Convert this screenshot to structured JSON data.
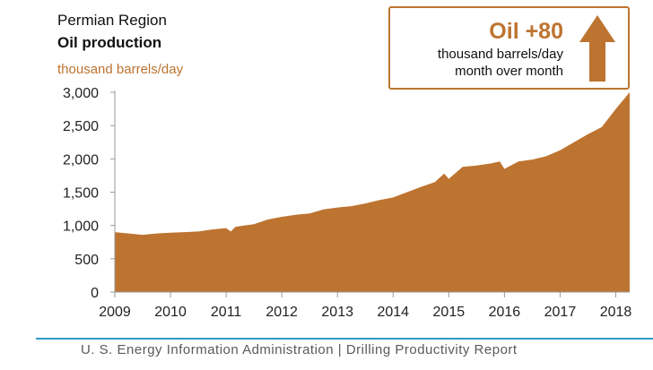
{
  "header": {
    "region": "Permian Region",
    "metric": "Oil production",
    "unit": "thousand barrels/day"
  },
  "callout": {
    "headline": "Oil +80",
    "line1": "thousand barrels/day",
    "line2": "month over month",
    "icon": "up-arrow-icon"
  },
  "footer": {
    "text": "U. S. Energy Information Administration  |  Drilling Productivity Report"
  },
  "colors": {
    "area": "#bd7430",
    "accent": "#bd7430",
    "footer_rule": "#2e9ac9",
    "axis": "#9a9a9a"
  },
  "chart_data": {
    "type": "area",
    "title": "Oil production",
    "ylabel": "thousand barrels/day",
    "xlabel": "",
    "ylim": [
      0,
      3000
    ],
    "xlim": [
      "2009-01",
      "2018-04"
    ],
    "yticks": [
      "0",
      "500",
      "1,000",
      "1,500",
      "2,000",
      "2,500",
      "3,000"
    ],
    "ytick_values": [
      0,
      500,
      1000,
      1500,
      2000,
      2500,
      3000
    ],
    "xticks": [
      "2009",
      "2010",
      "2011",
      "2012",
      "2013",
      "2014",
      "2015",
      "2016",
      "2017",
      "2018"
    ],
    "grid": false,
    "legend": "none",
    "series": [
      {
        "x": [
          "2009-01",
          "2009-04",
          "2009-07",
          "2009-10",
          "2010-01",
          "2010-04",
          "2010-07",
          "2010-10",
          "2011-01",
          "2011-02",
          "2011-03",
          "2011-04",
          "2011-07",
          "2011-10",
          "2012-01",
          "2012-04",
          "2012-07",
          "2012-10",
          "2013-01",
          "2013-04",
          "2013-07",
          "2013-10",
          "2014-01",
          "2014-04",
          "2014-07",
          "2014-10",
          "2014-12",
          "2015-01",
          "2015-04",
          "2015-07",
          "2015-10",
          "2015-12",
          "2016-01",
          "2016-04",
          "2016-07",
          "2016-10",
          "2017-01",
          "2017-04",
          "2017-07",
          "2017-10",
          "2018-01",
          "2018-04"
        ],
        "values": [
          900,
          880,
          860,
          880,
          890,
          900,
          910,
          940,
          960,
          910,
          980,
          990,
          1020,
          1090,
          1130,
          1160,
          1180,
          1240,
          1270,
          1290,
          1330,
          1380,
          1420,
          1500,
          1580,
          1650,
          1780,
          1700,
          1880,
          1900,
          1930,
          1960,
          1850,
          1960,
          1990,
          2040,
          2130,
          2250,
          2370,
          2480,
          2750,
          3050
        ]
      }
    ]
  }
}
